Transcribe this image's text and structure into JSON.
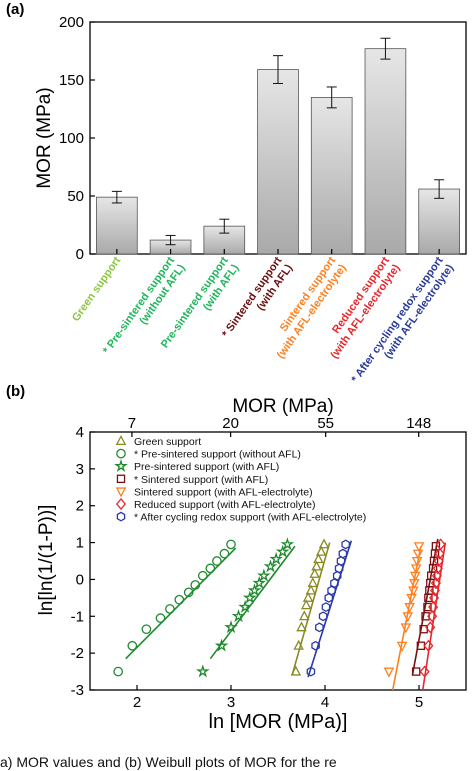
{
  "caption": "a) MOR values and (b) Weibull plots of MOR for the re",
  "chart_data": [
    {
      "type": "bar",
      "panel_label": "(a)",
      "ylabel": "MOR (MPa)",
      "ylim": [
        0,
        200
      ],
      "yticks": [
        0,
        50,
        100,
        150,
        200
      ],
      "categories": [
        "Green support",
        "* Pre-sintered support (without AFL)",
        "Pre-sintered support (with AFL)",
        "* Sintered support (with AFL)",
        "Sintered support (with AFL-electrolyte)",
        "Reduced support (with AFL-electrolyte)",
        "* After cycling redox support (with AFL-electrolyte)"
      ],
      "category_lines": [
        [
          "Green support"
        ],
        [
          "* Pre-sintered support",
          "(without AFL)"
        ],
        [
          "Pre-sintered support",
          "(with AFL)"
        ],
        [
          "* Sintered support",
          "(with AFL)"
        ],
        [
          "Sintered support",
          "(with AFL-electrolyte)"
        ],
        [
          "Reduced support",
          "(with AFL-electrolyte)"
        ],
        [
          "* After cycling redox support",
          "(with AFL-electrolyte)"
        ]
      ],
      "category_colors": [
        "#8cc63f",
        "#1fb65a",
        "#1fb65a",
        "#6b1010",
        "#ff7f1e",
        "#e8262b",
        "#2a3a9a"
      ],
      "values": [
        49,
        12,
        24,
        159,
        135,
        177,
        56
      ],
      "errors": [
        5,
        4,
        6,
        12,
        9,
        9,
        8
      ],
      "bar_color": "#cfcfcf",
      "grid": false
    },
    {
      "type": "scatter",
      "panel_label": "(b)",
      "xlabel": "ln [MOR (MPa)]",
      "ylabel": "ln[ln(1/(1-P))]",
      "top_axis_label": "MOR (MPa)",
      "top_ticks": [
        {
          "label": "7",
          "at": 1.946
        },
        {
          "label": "20",
          "at": 2.996
        },
        {
          "label": "55",
          "at": 4.007
        },
        {
          "label": "148",
          "at": 4.997
        }
      ],
      "xlim": [
        1.5,
        5.5
      ],
      "ylim": [
        -3,
        4
      ],
      "xticks": [
        2,
        3,
        4,
        5
      ],
      "yticks": [
        -3,
        -2,
        -1,
        0,
        1,
        2,
        3,
        4
      ],
      "legend_position": "top-left",
      "grid": false,
      "series": [
        {
          "name": "Green support",
          "color": "#8a8a24",
          "marker": "triangle",
          "x": [
            3.69,
            3.72,
            3.75,
            3.78,
            3.8,
            3.82,
            3.85,
            3.87,
            3.89,
            3.91,
            3.93,
            3.96,
            3.99
          ],
          "y": [
            -2.5,
            -1.8,
            -1.3,
            -1.0,
            -0.7,
            -0.5,
            -0.3,
            -0.1,
            0.15,
            0.35,
            0.55,
            0.75,
            0.95
          ],
          "fit": [
            [
              3.65,
              -2.6
            ],
            [
              4.05,
              1.0
            ]
          ]
        },
        {
          "name": "* Pre-sintered support (without AFL)",
          "color": "#1e8a2e",
          "marker": "circle",
          "x": [
            1.8,
            1.95,
            2.1,
            2.25,
            2.35,
            2.45,
            2.55,
            2.62,
            2.7,
            2.78,
            2.85,
            2.93,
            3.0
          ],
          "y": [
            -2.5,
            -1.8,
            -1.35,
            -1.05,
            -0.8,
            -0.55,
            -0.35,
            -0.15,
            0.1,
            0.3,
            0.5,
            0.7,
            0.95
          ],
          "fit": [
            [
              1.88,
              -2.15
            ],
            [
              3.05,
              0.85
            ]
          ]
        },
        {
          "name": "Pre-sintered support (with AFL)",
          "color": "#1e8a2e",
          "marker": "star",
          "x": [
            2.7,
            2.9,
            3.0,
            3.08,
            3.15,
            3.2,
            3.25,
            3.3,
            3.35,
            3.42,
            3.48,
            3.55,
            3.6
          ],
          "y": [
            -2.5,
            -1.8,
            -1.3,
            -1.0,
            -0.75,
            -0.5,
            -0.3,
            -0.1,
            0.1,
            0.35,
            0.55,
            0.75,
            0.95
          ],
          "fit": [
            [
              2.78,
              -2.15
            ],
            [
              3.68,
              0.9
            ]
          ]
        },
        {
          "name": "* Sintered support (with AFL)",
          "color": "#7a1010",
          "marker": "square",
          "x": [
            4.97,
            5.02,
            5.05,
            5.07,
            5.09,
            5.1,
            5.11,
            5.12,
            5.13,
            5.15,
            5.16,
            5.17,
            5.18
          ],
          "y": [
            -2.5,
            -1.8,
            -1.35,
            -1.0,
            -0.75,
            -0.5,
            -0.3,
            -0.1,
            0.1,
            0.3,
            0.5,
            0.7,
            0.9
          ],
          "fit": [
            [
              4.93,
              -2.6
            ],
            [
              5.2,
              1.1
            ]
          ]
        },
        {
          "name": "Sintered support (with AFL-electrolyte)",
          "color": "#ff7f1e",
          "marker": "triangle-down",
          "x": [
            4.68,
            4.82,
            4.86,
            4.88,
            4.9,
            4.92,
            4.94,
            4.95,
            4.96,
            4.97,
            4.98,
            4.99,
            5.0
          ],
          "y": [
            -2.5,
            -1.8,
            -1.3,
            -1.0,
            -0.75,
            -0.5,
            -0.3,
            -0.1,
            0.1,
            0.3,
            0.5,
            0.7,
            0.9
          ],
          "fit": [
            [
              4.72,
              -3.0
            ],
            [
              5.02,
              0.9
            ]
          ]
        },
        {
          "name": "Reduced support (with AFL-electrolyte)",
          "color": "#e8262b",
          "marker": "diamond",
          "x": [
            5.06,
            5.1,
            5.12,
            5.14,
            5.15,
            5.16,
            5.17,
            5.18,
            5.19,
            5.2,
            5.21,
            5.22,
            5.23
          ],
          "y": [
            -2.5,
            -1.8,
            -1.3,
            -1.0,
            -0.75,
            -0.5,
            -0.3,
            -0.1,
            0.1,
            0.3,
            0.5,
            0.7,
            0.95
          ],
          "fit": [
            [
              5.04,
              -3.0
            ],
            [
              5.28,
              1.0
            ]
          ]
        },
        {
          "name": "* After cycling redox support (with AFL-electrolyte)",
          "color": "#2a3aa8",
          "marker": "hexagon",
          "x": [
            3.85,
            3.9,
            3.94,
            3.98,
            4.01,
            4.04,
            4.07,
            4.1,
            4.13,
            4.15,
            4.17,
            4.19,
            4.22
          ],
          "y": [
            -2.5,
            -1.8,
            -1.3,
            -1.0,
            -0.75,
            -0.5,
            -0.3,
            -0.1,
            0.1,
            0.3,
            0.5,
            0.7,
            0.95
          ],
          "fit": [
            [
              3.82,
              -2.65
            ],
            [
              4.28,
              1.05
            ]
          ]
        }
      ]
    }
  ]
}
